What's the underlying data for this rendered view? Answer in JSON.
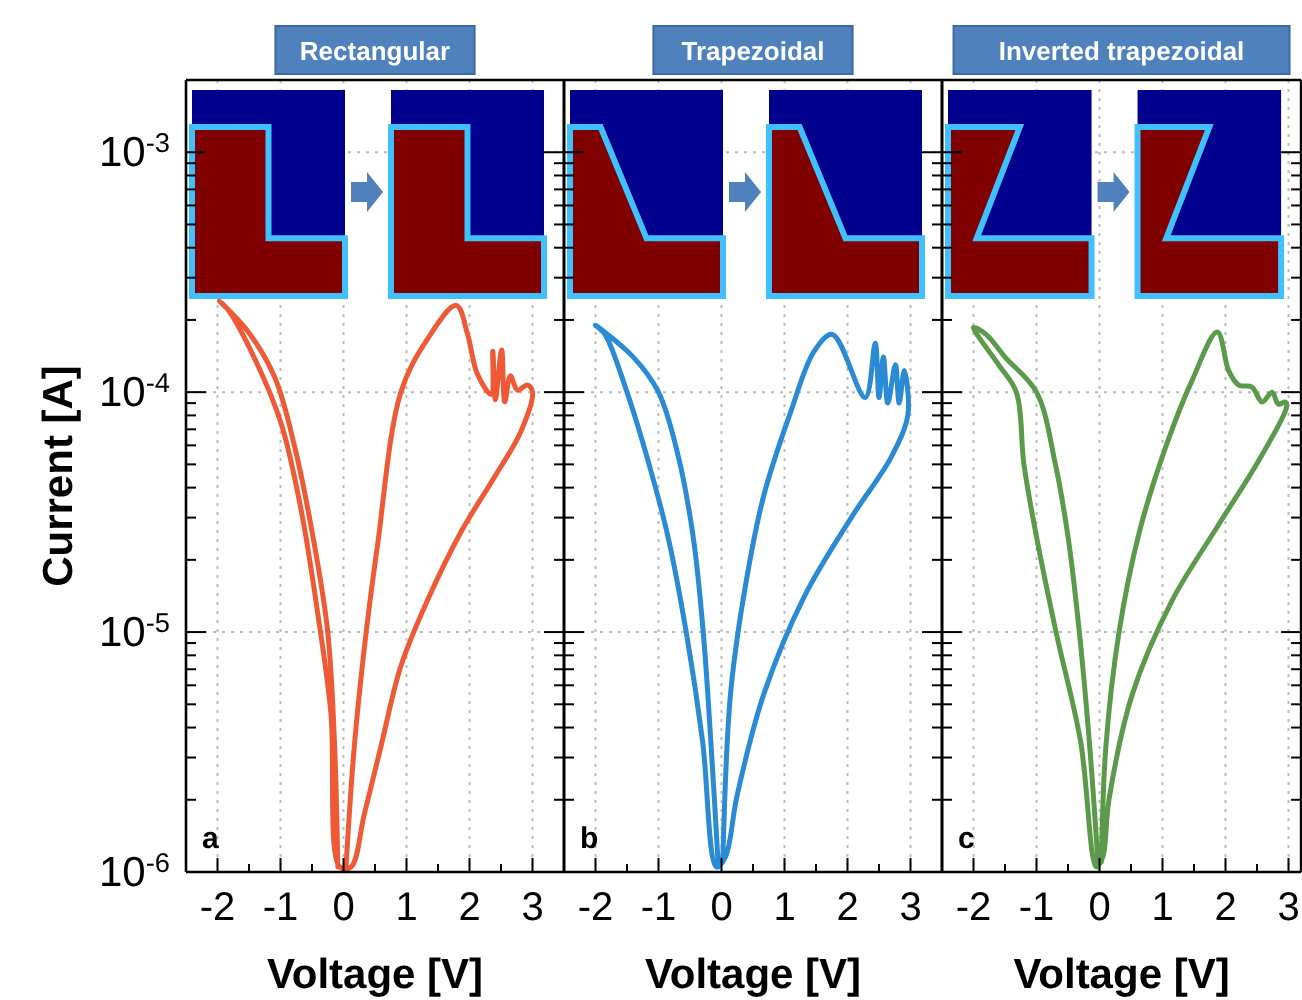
{
  "chart_data": [
    {
      "type": "line",
      "title": "Rectangular",
      "xlabel": "Voltage [V]",
      "ylabel": "Current [A]",
      "annotations": [
        "a"
      ],
      "log": "y",
      "grid": true,
      "marker": "none",
      "line_style": "solid",
      "xlim": [
        -2.5,
        3.5
      ],
      "xticks": [
        -2,
        {
          "value": -1.5,
          "label": null
        },
        -1,
        {
          "value": -0.5,
          "label": null
        },
        0,
        {
          "value": 0.5,
          "label": null
        },
        1,
        {
          "value": 1.5,
          "label": null
        },
        2,
        {
          "value": 2.5,
          "label": null
        },
        3
      ],
      "ylim": [
        1e-06,
        0.002
      ],
      "yticks": [
        {
          "value": 1e-06,
          "label": "10$^{-6}$"
        },
        {
          "value": 2e-06,
          "label": null
        },
        {
          "value": 3e-06,
          "label": null
        },
        {
          "value": 4e-06,
          "label": null
        },
        {
          "value": 5e-06,
          "label": null
        },
        {
          "value": 6e-06,
          "label": null
        },
        {
          "value": 7e-06,
          "label": null
        },
        {
          "value": 8e-06,
          "label": null
        },
        {
          "value": 9e-06,
          "label": null
        },
        {
          "value": 1e-05,
          "label": "10$^{-5}$"
        },
        {
          "value": 2e-05,
          "label": null
        },
        {
          "value": 3e-05,
          "label": null
        },
        {
          "value": 4e-05,
          "label": null
        },
        {
          "value": 5e-05,
          "label": null
        },
        {
          "value": 6e-05,
          "label": null
        },
        {
          "value": 7e-05,
          "label": null
        },
        {
          "value": 8e-05,
          "label": null
        },
        {
          "value": 9e-05,
          "label": null
        },
        {
          "value": 0.0001,
          "label": "10$^{-4}$"
        },
        {
          "value": 0.0002,
          "label": null
        },
        {
          "value": 0.0003,
          "label": null
        },
        {
          "value": 0.0004,
          "label": null
        },
        {
          "value": 0.0005,
          "label": null
        },
        {
          "value": 0.0006,
          "label": null
        },
        {
          "value": 0.0007,
          "label": null
        },
        {
          "value": 0.0008,
          "label": null
        },
        {
          "value": 0.0009,
          "label": null
        },
        {
          "value": 0.001,
          "label": "10$^{-3}$"
        },
        {
          "value": 0.002,
          "label": null
        }
      ],
      "series": [
        {
          "color": "#ee5a36",
          "x": [
            0.04,
            0.17,
            0.36,
            0.54,
            0.91,
            1.33,
            1.79,
            1.97,
            2.12,
            2.34,
            2.37,
            2.41,
            2.51,
            2.56,
            2.65,
            2.76,
            2.92,
            3.0,
            2.81,
            2.39,
            1.86,
            1.33,
            0.91,
            0.59,
            0.33,
            0.12,
            -0.06,
            -0.2,
            -0.41,
            -0.67,
            -0.99,
            -1.41,
            -1.83,
            -1.97,
            -1.51,
            -1.09,
            -0.78,
            -0.46,
            -0.25,
            -0.14,
            -0.09
          ],
          "values": [
            1.05e-06,
            3.3e-06,
            1e-05,
            2.3e-05,
            0.0001,
            0.000166,
            0.00023,
            0.000174,
            0.00012,
            9.8e-05,
            0.000148,
            9.3e-05,
            0.00015,
            9.1e-05,
            0.000117,
            0.000102,
            0.000107,
            0.0001,
            6.8e-05,
            4.4e-05,
            2.6e-05,
            1.35e-05,
            7.2e-06,
            3.3e-06,
            1.74e-06,
            1.05e-06,
            1.05e-06,
            4.6e-06,
            1.2e-05,
            3.2e-05,
            7.4e-05,
            0.000138,
            0.00022,
            0.00024,
            0.000178,
            0.000115,
            6e-05,
            2.3e-05,
            1e-05,
            3.3e-06,
            1.05e-06
          ]
        }
      ]
    },
    {
      "type": "line",
      "title": "Trapezoidal",
      "xlabel": "Voltage [V]",
      "annotations": [
        "b"
      ],
      "log": "y",
      "grid": true,
      "marker": "none",
      "line_style": "solid",
      "tick_labels": "x",
      "xlim": [
        -2.5,
        3.5
      ],
      "xticks": [
        -2,
        {
          "value": -1.5,
          "label": null
        },
        -1,
        {
          "value": -0.5,
          "label": null
        },
        0,
        {
          "value": 0.5,
          "label": null
        },
        1,
        {
          "value": 1.5,
          "label": null
        },
        2,
        {
          "value": 2.5,
          "label": null
        },
        3
      ],
      "ylim": [
        1e-06,
        0.002
      ],
      "yticks": [
        {
          "value": 1e-06,
          "label": null
        },
        {
          "value": 2e-06,
          "label": null
        },
        {
          "value": 3e-06,
          "label": null
        },
        {
          "value": 4e-06,
          "label": null
        },
        {
          "value": 5e-06,
          "label": null
        },
        {
          "value": 6e-06,
          "label": null
        },
        {
          "value": 7e-06,
          "label": null
        },
        {
          "value": 8e-06,
          "label": null
        },
        {
          "value": 9e-06,
          "label": null
        },
        {
          "value": 1e-05,
          "label": null
        },
        {
          "value": 2e-05,
          "label": null
        },
        {
          "value": 3e-05,
          "label": null
        },
        {
          "value": 4e-05,
          "label": null
        },
        {
          "value": 5e-05,
          "label": null
        },
        {
          "value": 6e-05,
          "label": null
        },
        {
          "value": 7e-05,
          "label": null
        },
        {
          "value": 8e-05,
          "label": null
        },
        {
          "value": 9e-05,
          "label": null
        },
        {
          "value": 0.0001,
          "label": null
        },
        {
          "value": 0.0002,
          "label": null
        },
        {
          "value": 0.0003,
          "label": null
        },
        {
          "value": 0.0004,
          "label": null
        },
        {
          "value": 0.0005,
          "label": null
        },
        {
          "value": 0.0006,
          "label": null
        },
        {
          "value": 0.0007,
          "label": null
        },
        {
          "value": 0.0008,
          "label": null
        },
        {
          "value": 0.0009,
          "label": null
        },
        {
          "value": 0.001,
          "label": null
        },
        {
          "value": 0.002,
          "label": null
        }
      ],
      "series": [
        {
          "color": "#2a8ad4",
          "x": [
            0.02,
            0.14,
            0.35,
            0.67,
            1.1,
            1.47,
            1.76,
            2.28,
            2.44,
            2.5,
            2.57,
            2.64,
            2.76,
            2.82,
            2.9,
            2.96,
            2.7,
            2.06,
            1.31,
            0.67,
            0.25,
            0.06,
            -0.08,
            -0.3,
            -0.56,
            -0.85,
            -1.15,
            -1.5,
            -1.85,
            -2.0,
            -1.4,
            -1.0,
            -0.7,
            -0.45,
            -0.29,
            -0.16,
            -0.05
          ],
          "values": [
            1.1e-06,
            5.4e-06,
            1.4e-05,
            3.7e-05,
            8.3e-05,
            0.000148,
            0.000174,
            9.5e-05,
            0.00016,
            9.5e-05,
            0.00014,
            9e-05,
            0.00013,
            9e-05,
            0.000123,
            8.1e-05,
            5.4e-05,
            3e-05,
            1.4e-05,
            5.5e-06,
            2.1e-06,
            1.15e-06,
            1.05e-06,
            3.5e-06,
            1e-05,
            2.5e-05,
            5e-05,
            0.0001,
            0.000174,
            0.00019,
            0.00014,
            0.0001,
            5.6e-05,
            2.5e-05,
            1e-05,
            3.2e-06,
            1.05e-06
          ]
        }
      ]
    },
    {
      "type": "line",
      "title": "Inverted trapezoidal",
      "xlabel": "Voltage [V]",
      "annotations": [
        "c"
      ],
      "log": "y",
      "grid": true,
      "marker": "none",
      "line_style": "solid",
      "tick_labels": "x",
      "xlim": [
        -2.5,
        3.2
      ],
      "xticks": [
        -2,
        {
          "value": -1.5,
          "label": null
        },
        -1,
        {
          "value": -0.5,
          "label": null
        },
        0,
        {
          "value": 0.5,
          "label": null
        },
        1,
        {
          "value": 1.5,
          "label": null
        },
        2,
        {
          "value": 2.5,
          "label": null
        },
        3
      ],
      "ylim": [
        1e-06,
        0.002
      ],
      "yticks": [
        {
          "value": 1e-06,
          "label": null
        },
        {
          "value": 2e-06,
          "label": null
        },
        {
          "value": 3e-06,
          "label": null
        },
        {
          "value": 4e-06,
          "label": null
        },
        {
          "value": 5e-06,
          "label": null
        },
        {
          "value": 6e-06,
          "label": null
        },
        {
          "value": 7e-06,
          "label": null
        },
        {
          "value": 8e-06,
          "label": null
        },
        {
          "value": 9e-06,
          "label": null
        },
        {
          "value": 1e-05,
          "label": null
        },
        {
          "value": 2e-05,
          "label": null
        },
        {
          "value": 3e-05,
          "label": null
        },
        {
          "value": 4e-05,
          "label": null
        },
        {
          "value": 5e-05,
          "label": null
        },
        {
          "value": 6e-05,
          "label": null
        },
        {
          "value": 7e-05,
          "label": null
        },
        {
          "value": 8e-05,
          "label": null
        },
        {
          "value": 9e-05,
          "label": null
        },
        {
          "value": 0.0001,
          "label": null
        },
        {
          "value": 0.0002,
          "label": null
        },
        {
          "value": 0.0003,
          "label": null
        },
        {
          "value": 0.0004,
          "label": null
        },
        {
          "value": 0.0005,
          "label": null
        },
        {
          "value": 0.0006,
          "label": null
        },
        {
          "value": 0.0007,
          "label": null
        },
        {
          "value": 0.0008,
          "label": null
        },
        {
          "value": 0.0009,
          "label": null
        },
        {
          "value": 0.001,
          "label": null
        },
        {
          "value": 0.002,
          "label": null
        }
      ],
      "series": [
        {
          "color": "#5b9a4a",
          "x": [
            0.03,
            0.1,
            0.31,
            0.63,
            1.05,
            1.47,
            1.87,
            2.05,
            2.21,
            2.42,
            2.58,
            2.74,
            2.84,
            2.95,
            2.97,
            2.53,
            1.89,
            1.15,
            0.52,
            0.15,
            0.05,
            -0.05,
            -0.3,
            -0.69,
            -1.0,
            -1.2,
            -1.32,
            -1.6,
            -2.0,
            -1.8,
            -1.5,
            -1.0,
            -0.7,
            -0.5,
            -0.32,
            -0.15,
            -0.02
          ],
          "values": [
            1.1e-06,
            3.3e-06,
            1e-05,
            2.6e-05,
            5.9e-05,
            0.000112,
            0.000178,
            0.000123,
            0.000107,
            0.000105,
            9.1e-05,
            0.0001,
            8.9e-05,
            9.1e-05,
            8.7e-05,
            5.2e-05,
            2.8e-05,
            1.35e-05,
            5.5e-06,
            2e-06,
            1.15e-06,
            1.05e-06,
            3.5e-06,
            1e-05,
            2.5e-05,
            5e-05,
            0.0001,
            0.00013,
            0.000186,
            0.000174,
            0.00014,
            0.0001,
            5e-05,
            2.5e-05,
            1e-05,
            3.2e-06,
            1.05e-06
          ]
        }
      ]
    }
  ]
}
